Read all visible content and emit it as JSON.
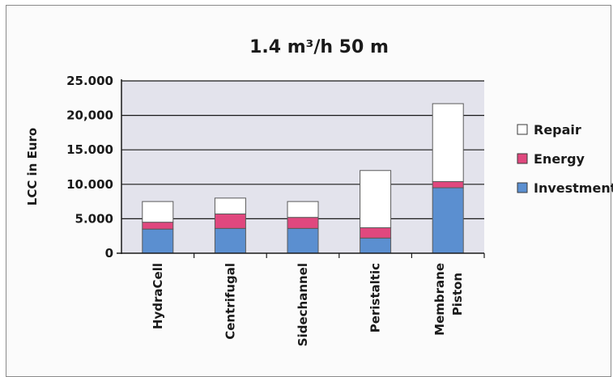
{
  "chart_data": {
    "type": "bar",
    "stacked": true,
    "title": "1.4 m³/h  50 m",
    "ylabel": "LCC in Euro",
    "xlabel": "",
    "ylim": [
      0,
      25000
    ],
    "yticks": [
      0,
      5000,
      10000,
      15000,
      20000,
      25000
    ],
    "ytick_labels": [
      "0",
      "5.000",
      "10.000",
      "15.000",
      "20,000",
      "25.000"
    ],
    "categories": [
      [
        "HydraCell"
      ],
      [
        "Centrifugal"
      ],
      [
        "Sidechannel"
      ],
      [
        "Peristaltic"
      ],
      [
        "Membrane",
        "Piston"
      ]
    ],
    "series": [
      {
        "name": "Investment",
        "color": "#5b8fd0",
        "values": [
          3500,
          3600,
          3600,
          2200,
          9500
        ]
      },
      {
        "name": "Energy",
        "color": "#e0487e",
        "values": [
          1000,
          2100,
          1600,
          1500,
          900
        ]
      },
      {
        "name": "Repair",
        "color": "#ffffff",
        "values": [
          3000,
          2300,
          2300,
          8300,
          11300
        ]
      }
    ],
    "legend": {
      "position": "right",
      "order": [
        "Repair",
        "Energy",
        "Investment"
      ]
    },
    "grid": true,
    "plot_background": "#e3e3ec"
  }
}
